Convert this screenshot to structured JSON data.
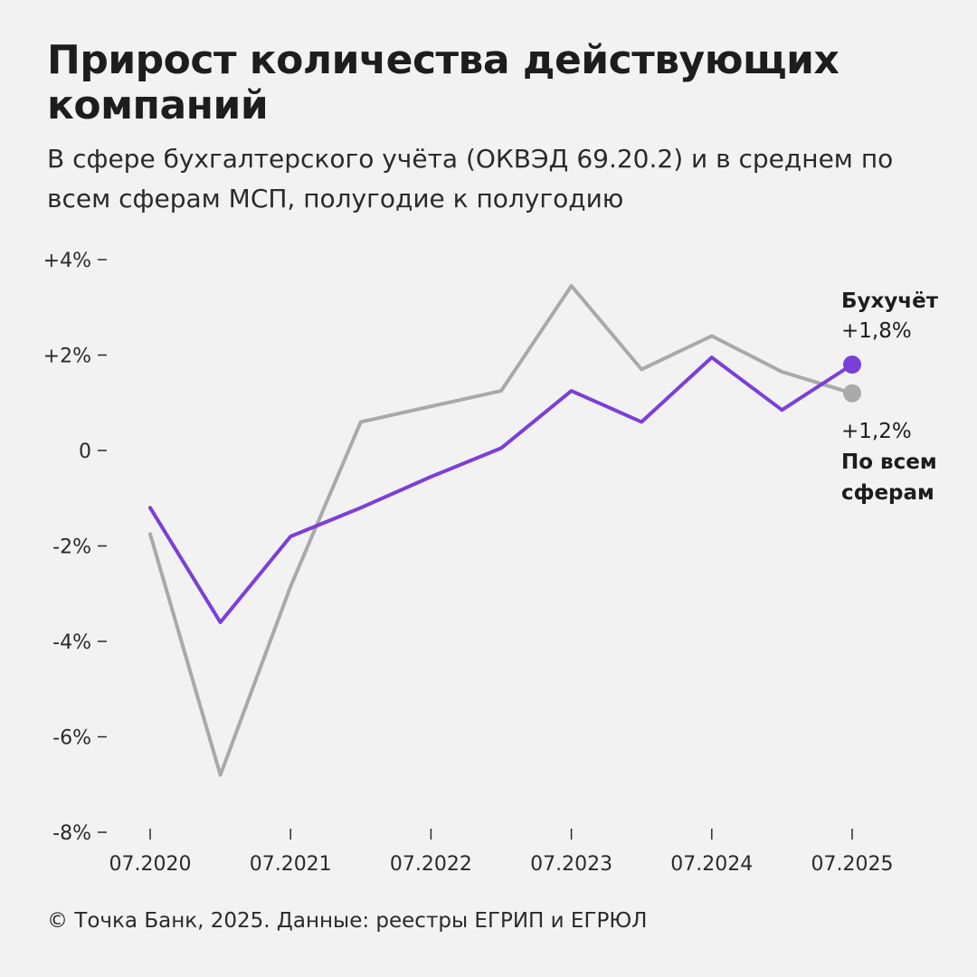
{
  "header": {
    "title": "Прирост количества действующих компаний",
    "subtitle": "В сфере бухгалтерского учёта (ОКВЭД 69.20.2) и в среднем по всем сферам МСП, полугодие к полугодию"
  },
  "footer": {
    "source": "© Точка Банк, 2025. Данные: реестры ЕГРИП и ЕГРЮЛ"
  },
  "chart_data": {
    "type": "line",
    "title": "Прирост количества действующих компаний",
    "subtitle": "В сфере бухгалтерского учёта (ОКВЭД 69.20.2) и в среднем по всем сферам МСП, полугодие к полугодию",
    "x": [
      "07.2020",
      "01.2021",
      "07.2021",
      "01.2022",
      "07.2022",
      "01.2023",
      "07.2023",
      "01.2024",
      "07.2024",
      "01.2025",
      "07.2025"
    ],
    "x_tick_labels": [
      "07.2020",
      "07.2021",
      "07.2022",
      "07.2023",
      "07.2024",
      "07.2025"
    ],
    "ylim": [
      -8,
      4
    ],
    "y_ticks": [
      4,
      2,
      0,
      -2,
      -4,
      -6,
      -8
    ],
    "y_tick_labels": [
      "+4%",
      "+2%",
      "0",
      "-2%",
      "-4%",
      "-6%",
      "-8%"
    ],
    "grid": false,
    "series": [
      {
        "name": "Бухучёт",
        "color": "#7b3fd9",
        "values": [
          -1.2,
          -3.6,
          -1.8,
          -1.2,
          -0.55,
          0.05,
          1.25,
          0.6,
          1.95,
          0.85,
          1.8
        ],
        "end_label": "+1,8%"
      },
      {
        "name": "По всем сферам",
        "color": "#a9a9a9",
        "values": [
          -1.75,
          -6.8,
          -2.85,
          0.6,
          null,
          1.25,
          3.45,
          1.7,
          2.4,
          1.65,
          1.2
        ],
        "end_label": "+1,2%"
      }
    ]
  }
}
